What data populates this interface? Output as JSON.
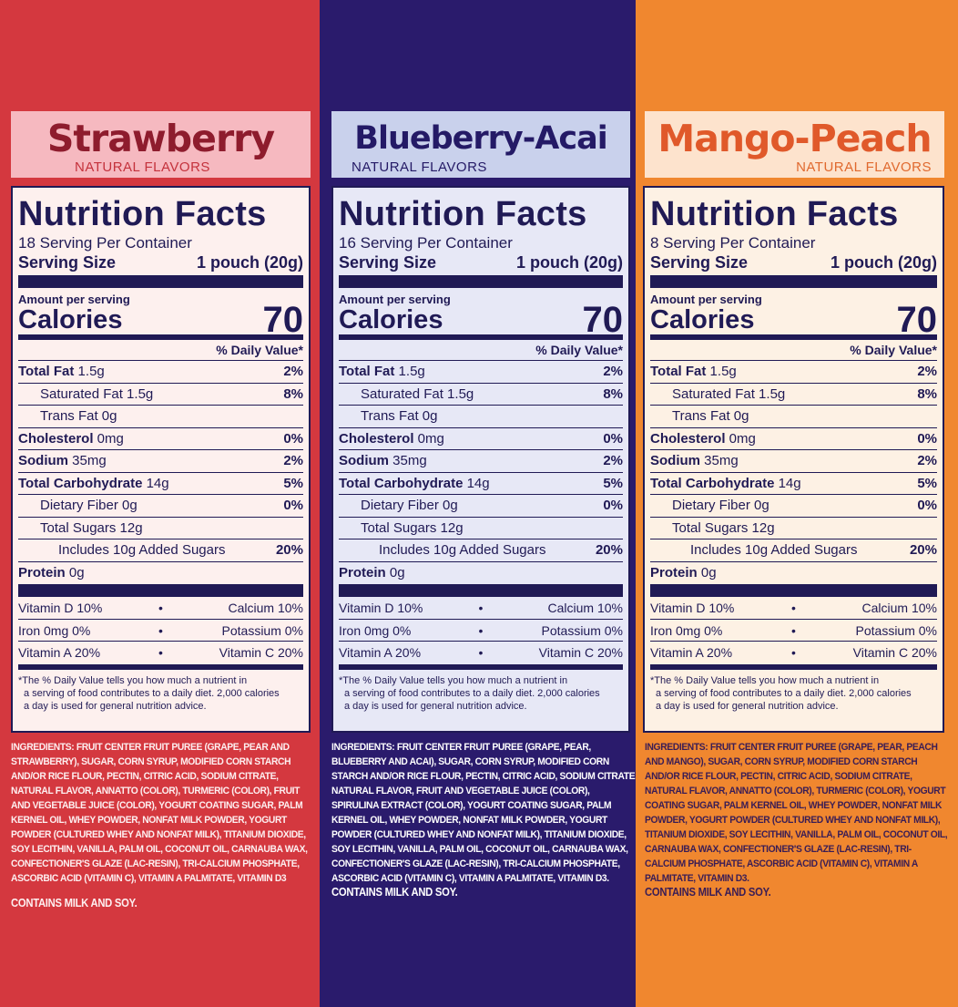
{
  "colors": {
    "strawberry_bg": "#d4383f",
    "blueberry_bg": "#2a1b6c",
    "mango_bg": "#f0872f",
    "label_ink": "#201a55"
  },
  "common": {
    "title": "Nutrition Facts",
    "serving_size_label": "Serving Size",
    "serving_size_value": "1 pouch (20g)",
    "amount_per_serving": "Amount per serving",
    "calories_label": "Calories",
    "calories_value": "70",
    "daily_value_header": "% Daily Value*",
    "nutrients": [
      {
        "bold": "Total Fat",
        "name": " 1.5g",
        "pct": "2%"
      },
      {
        "bold": "",
        "name": "Saturated Fat 1.5g",
        "pct": "8%"
      },
      {
        "bold": "",
        "name": "Trans Fat 0g",
        "pct": ""
      },
      {
        "bold": "Cholesterol",
        "name": " 0mg",
        "pct": "0%"
      },
      {
        "bold": "Sodium",
        "name": " 35mg",
        "pct": "2%"
      },
      {
        "bold": "Total Carbohydrate",
        "name": " 14g",
        "pct": "5%"
      },
      {
        "bold": "",
        "name": "Dietary Fiber 0g",
        "pct": "0%"
      },
      {
        "bold": "",
        "name": "Total Sugars 12g",
        "pct": ""
      },
      {
        "bold": "",
        "name": "Includes 10g Added Sugars",
        "pct": "20%"
      },
      {
        "bold": "Protein",
        "name": " 0g",
        "pct": ""
      }
    ],
    "vitamins": [
      {
        "left": "Vitamin D  10%",
        "dot": "•",
        "right": "Calcium  10%"
      },
      {
        "left": "Iron 0mg 0%",
        "dot": "•",
        "right": "Potassium 0%"
      },
      {
        "left": "Vitamin A 20%",
        "dot": "•",
        "right": "Vitamin C 20%"
      }
    ],
    "footnote": [
      "*The % Daily Value tells you how much a nutrient in",
      "a serving of food contributes to a daily diet. 2,000 calories",
      "a day is used for general nutrition advice."
    ],
    "contains": "CONTAINS MILK AND SOY."
  },
  "products": [
    {
      "flavor": "Strawberry",
      "sub": "NATURAL FLAVORS",
      "servings": "18 Serving Per Container",
      "ingredients_lead": "INGREDIENTS: FRUIT CENTER",
      "ingredients": " FRUIT PUREE (GRAPE, PEAR AND STRAWBERRY), SUGAR, CORN SYRUP, MODIFIED CORN STARCH AND/OR RICE FLOUR, PECTIN, CITRIC ACID, SODIUM CITRATE, NATURAL FLAVOR, ANNATTO (COLOR), TURMERIC (COLOR), FRUIT AND VEGETABLE JUICE (COLOR), YOGURT COATING SUGAR, PALM KERNEL OIL, WHEY POWDER, NONFAT MILK POWDER, YOGURT POWDER (CULTURED WHEY AND NONFAT MILK), TITANIUM DIOXIDE, SOY LECITHIN, VANILLA, PALM OIL, COCONUT OIL, CARNAUBA WAX, CONFECTIONER'S GLAZE (LAC-RESIN), TRI-CALCIUM PHOSPHATE, ASCORBIC ACID (VITAMIN C), VITAMIN A PALMITATE, VITAMIN D3"
    },
    {
      "flavor": "Blueberry-Acai",
      "sub": "NATURAL FLAVORS",
      "servings": "16 Serving Per Container",
      "ingredients_lead": "INGREDIENTS: FRUIT CENTER",
      "ingredients": " FRUIT PUREE (GRAPE, PEAR, BLUEBERRY AND ACAI), SUGAR, CORN SYRUP, MODIFIED CORN STARCH AND/OR RICE FLOUR, PECTIN, CITRIC ACID, SODIUM CITRATE, NATURAL FLAVOR, FRUIT AND VEGETABLE JUICE (COLOR), SPIRULINA EXTRACT (COLOR), YOGURT COATING SUGAR, PALM KERNEL OIL, WHEY POWDER, NONFAT MILK POWDER, YOGURT POWDER (CULTURED WHEY AND NONFAT MILK), TITANIUM DIOXIDE, SOY LECITHIN, VANILLA, PALM OIL, COCONUT OIL, CARNAUBA WAX, CONFECTIONER'S GLAZE (LAC-RESIN), TRI-CALCIUM PHOSPHATE, ASCORBIC ACID (VITAMIN C), VITAMIN A PALMITATE, VITAMIN D3."
    },
    {
      "flavor": "Mango-Peach",
      "sub": "NATURAL FLAVORS",
      "servings": "8 Serving Per Container",
      "ingredients_lead": "INGREDIENTS: FRUIT CENTER",
      "ingredients": " FRUIT PUREE (GRAPE, PEAR, PEACH AND MANGO), SUGAR, CORN SYRUP, MODIFIED CORN STARCH AND/OR RICE FLOUR, PECTIN, CITRIC ACID, SODIUM CITRATE, NATURAL FLAVOR, ANNATTO (COLOR), TURMERIC (COLOR), YOGURT COATING SUGAR, PALM KERNEL OIL, WHEY POWDER, NONFAT MILK POWDER, YOGURT POWDER (CULTURED WHEY AND NONFAT MILK), TITANIUM DIOXIDE, SOY LECITHIN, VANILLA, PALM OIL, COCONUT OIL, CARNAUBA WAX, CONFECTIONER'S GLAZE (LAC-RESIN), TRI-CALCIUM PHOSPHATE, ASCORBIC ACID (VITAMIN C), VITAMIN A PALMITATE, VITAMIN D3."
    }
  ]
}
